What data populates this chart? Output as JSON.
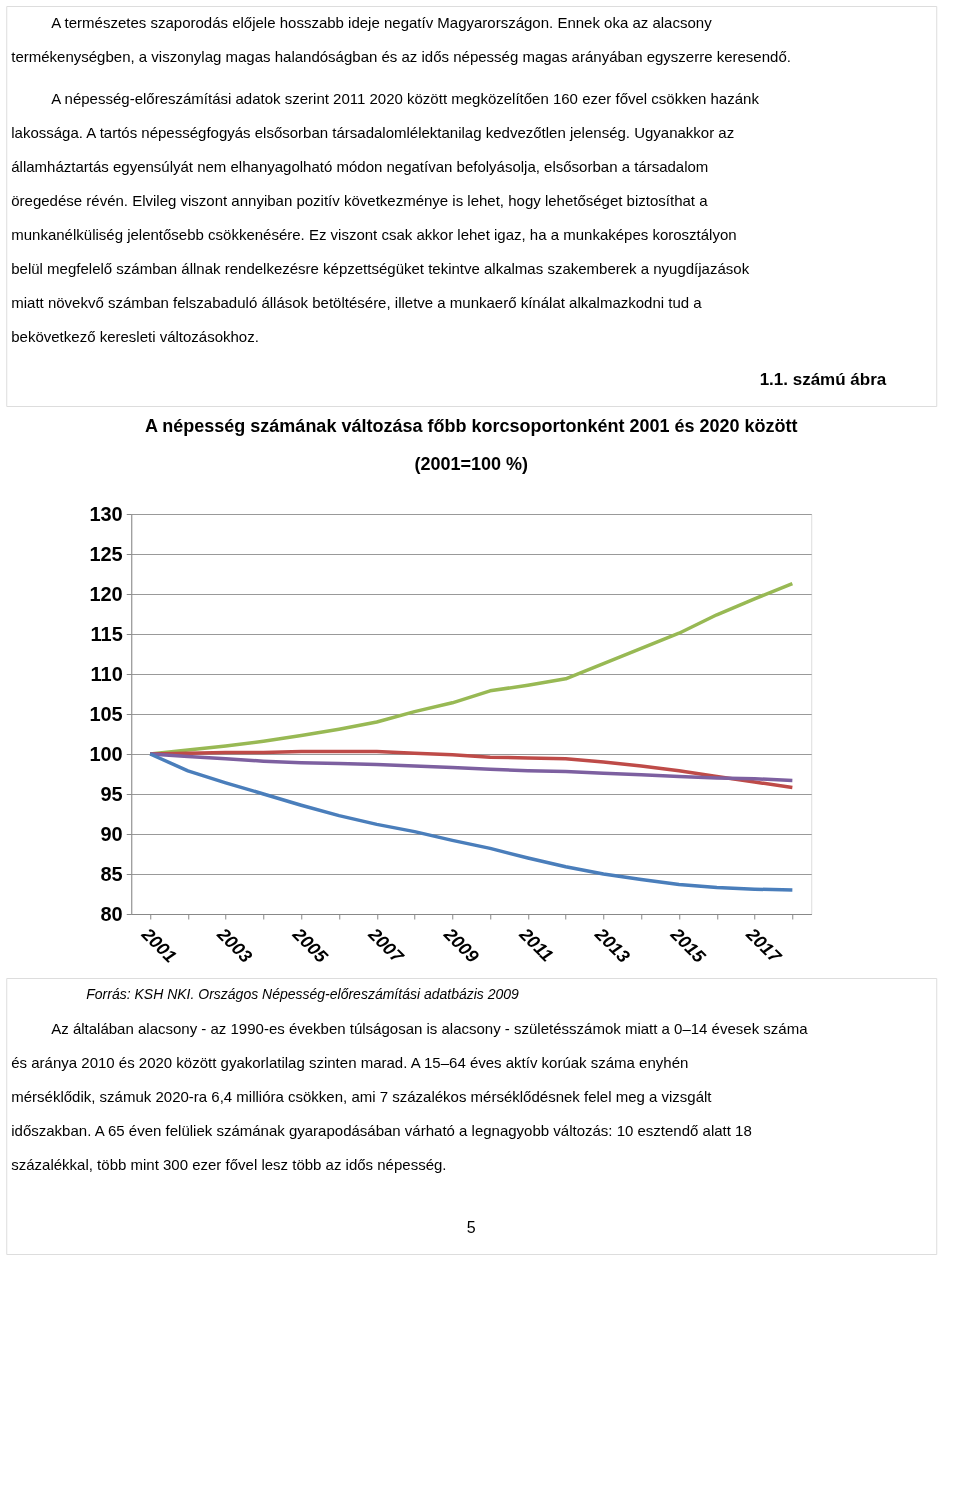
{
  "chart_data": {
    "type": "line",
    "title": "A népesség számának változása főbb korcsoportonként 2001 és 2020 között",
    "subtitle": "(2001=100 %)",
    "categories": [
      "2001",
      null,
      "2003",
      null,
      "2005",
      null,
      "2007",
      null,
      "2009",
      null,
      "2011",
      null,
      "2013",
      null,
      "2015",
      null,
      "2017",
      null
    ],
    "series": [
      {
        "color": "#98b954",
        "values": [
          100,
          100.5,
          101,
          101.6,
          102.3,
          103.1,
          104,
          105.3,
          106.4,
          107.9,
          108.6,
          109.4,
          111.3,
          113.2,
          115.1,
          117.4,
          119.4,
          121.3
        ]
      },
      {
        "color": "#be4b48",
        "values": [
          100,
          100.1,
          100.2,
          100.2,
          100.3,
          100.3,
          100.3,
          100.1,
          99.9,
          99.6,
          99.5,
          99.4,
          99.0,
          98.5,
          97.9,
          97.2,
          96.5,
          95.8
        ]
      },
      {
        "color": "#7d60a0",
        "values": [
          100,
          99.7,
          99.4,
          99.1,
          98.9,
          98.8,
          98.7,
          98.5,
          98.3,
          98.1,
          97.9,
          97.8,
          97.6,
          97.4,
          97.2,
          97.0,
          96.9,
          96.7
        ]
      },
      {
        "color": "#4a7ebb",
        "values": [
          100,
          97.9,
          96.4,
          95.0,
          93.6,
          92.3,
          91.2,
          90.3,
          89.2,
          88.2,
          87.0,
          85.9,
          85.0,
          84.3,
          83.7,
          83.3,
          83.1,
          83.0
        ]
      }
    ],
    "ylim": [
      80,
      130
    ],
    "yticks": [
      80,
      85,
      90,
      95,
      100,
      105,
      110,
      115,
      120,
      125,
      130
    ],
    "grid": "y",
    "line_style": "solid",
    "marker": "none",
    "annotations": [
      "A természetes szaporodás előjele hosszabb ideje negatív Magyarországon. Ennek oka az alacsony termékenységben, a viszonylag magas halandóságban és az idős népesség magas arányában egyszerre keresendő.",
      "A népesség-előreszámítási adatok szerint 2011 2020 között megközelítően 160 ezer fővel csökken hazánk lakossága. A tartós népességfogyás elsősorban társadalomlélektanilag kedvezőtlen jelenség. Ugyanakkor az államháztartás egyensúlyát nem elhanyagolható módon negatívan befolyásolja, elsősorban a társadalom öregedése révén. Elvileg viszont annyiban pozitív következménye is lehet, hogy lehetőséget biztosíthat a munkanélküliség jelentősebb csökkenésére. Ez viszont csak akkor lehet igaz, ha a munkaképes korosztályon belül megfelelő számban állnak rendelkezésre képzettségüket tekintve alkalmas szakemberek a nyugdíjazások miatt növekvő számban felszabaduló állások betöltésére, illetve a munkaerő kínálat alkalmazkodni tud a bekövetkező keresleti változásokhoz.",
      "1.1. számú ábra",
      "Forrás: KSH NKI. Országos Népesség-előreszámítási adatbázis 2009",
      "Az általában alacsony - az 1990-es években túlságosan is alacsony - születésszámok miatt a 0–14 évesek száma és aránya 2010 és 2020 között gyakorlatilag szinten marad. A 15–64 éves aktív korúak száma enyhén mérséklődik, számuk 2020-ra 6,4 millióra csökken, ami 7 százalékos mérséklődésnek felel meg a vizsgált időszakban. A 65 éven felüliek számának gyarapodásában várható a legnagyobb változás: 10 esztendő alatt 18 százalékkal, több mint 300 ezer fővel lesz több az idős népesség.",
      "5"
    ]
  }
}
